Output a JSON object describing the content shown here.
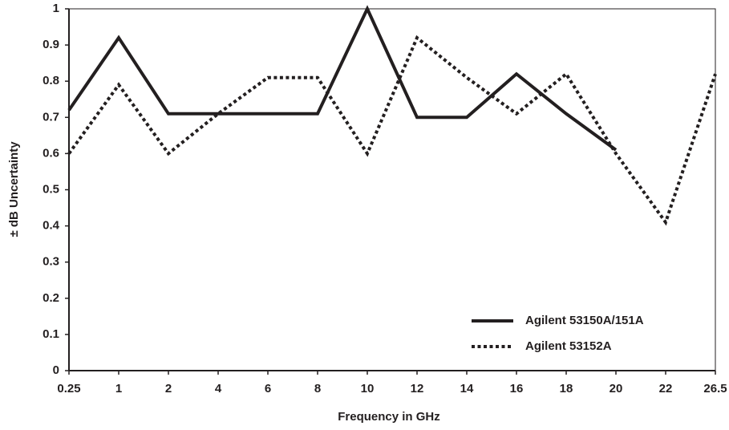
{
  "chart_data": {
    "type": "line",
    "x_label": "Frequency in GHz",
    "y_label": "± dB Uncertainty",
    "categories": [
      "0.25",
      "1",
      "2",
      "4",
      "6",
      "8",
      "10",
      "12",
      "14",
      "16",
      "18",
      "20",
      "22",
      "26.5"
    ],
    "series": [
      {
        "name": "Agilent 53150A/151A",
        "color": "#231f20",
        "style": "solid",
        "values": [
          0.72,
          0.92,
          0.71,
          0.71,
          0.71,
          0.71,
          1.0,
          0.7,
          0.7,
          0.82,
          0.71,
          0.61,
          null,
          null
        ]
      },
      {
        "name": "Agilent 53152A",
        "color": "#231f20",
        "style": "dotted",
        "values": [
          0.6,
          0.79,
          0.6,
          0.71,
          0.81,
          0.81,
          0.6,
          0.92,
          0.81,
          0.71,
          0.82,
          0.6,
          0.41,
          0.82
        ]
      }
    ],
    "ylim": [
      0,
      1
    ],
    "yticks": [
      0,
      0.1,
      0.2,
      0.3,
      0.4,
      0.5,
      0.6,
      0.7,
      0.8,
      0.9,
      1
    ],
    "grid": false,
    "legend": "lower-right"
  }
}
